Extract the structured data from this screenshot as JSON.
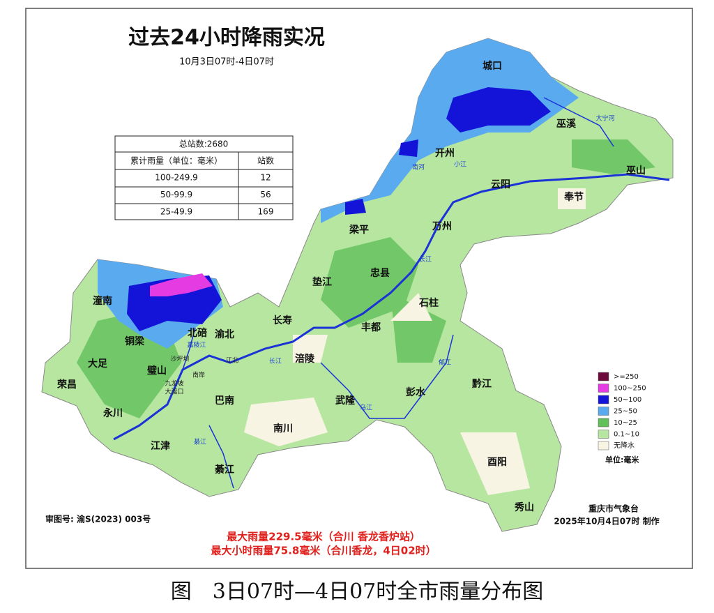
{
  "title": "过去24小时降雨实况",
  "subtitle": "10月3日07时-4日07时",
  "table": {
    "total": "总站数:2680",
    "columns": [
      "累计雨量（单位：毫米）",
      "站数"
    ],
    "rows": [
      [
        "100-249.9",
        "12"
      ],
      [
        "50-99.9",
        "56"
      ],
      [
        "25-49.9",
        "169"
      ]
    ]
  },
  "legend": {
    "items": [
      {
        "label": ">=250",
        "color": "#6b0a3a"
      },
      {
        "label": "100~250",
        "color": "#e53be3"
      },
      {
        "label": "50~100",
        "color": "#1414d8"
      },
      {
        "label": "25~50",
        "color": "#5aaaf0"
      },
      {
        "label": "10~25",
        "color": "#62c05a"
      },
      {
        "label": "0.1~10",
        "color": "#b6e6a0"
      },
      {
        "label": "无降水",
        "color": "#f8f4e4"
      }
    ],
    "unit": "单位:毫米"
  },
  "places": [
    "城口",
    "巫溪",
    "开州",
    "巫山",
    "云阳",
    "奉节",
    "梁平",
    "万州",
    "忠县",
    "垫江",
    "石柱",
    "潼南",
    "长寿",
    "丰都",
    "北碚",
    "渝北",
    "铜梁",
    "大足",
    "涪陵",
    "璧山",
    "荣昌",
    "黔江",
    "彭水",
    "巴南",
    "武隆",
    "永川",
    "南川",
    "江津",
    "綦江",
    "酉阳",
    "秀山"
  ],
  "small_labels": [
    "沙坪坝",
    "南岸",
    "九龙坡",
    "大渡口",
    "江北"
  ],
  "rivers": [
    "大宁河",
    "南河",
    "小江",
    "长江",
    "长江",
    "嘉陵江",
    "郁江",
    "乌江",
    "綦江"
  ],
  "notes": {
    "review": "审图号: 渝S(2023) 003号",
    "agency": "重庆市气象台",
    "issued": "2025年10月4日07时 制作",
    "max_rain": "最大雨量229.5毫米（合川 香龙香炉站）",
    "max_hourly": "最大小时雨量75.8毫米（合川香龙，4日02时）"
  },
  "caption": "图　3日07时—4日07时全市雨量分布图"
}
